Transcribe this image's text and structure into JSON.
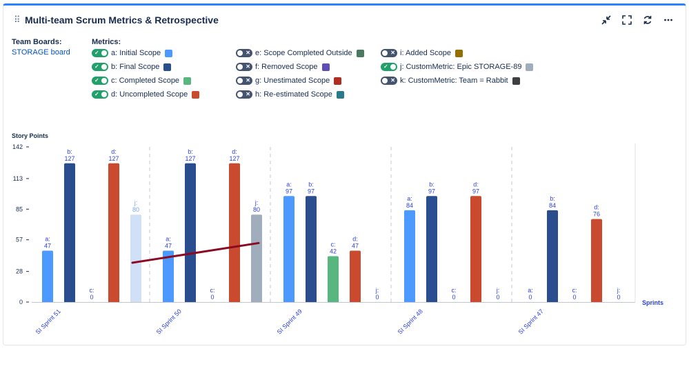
{
  "header": {
    "title": "Multi-team Scrum Metrics & Retrospective",
    "icons": [
      "collapse-icon",
      "fullscreen-icon",
      "refresh-icon",
      "more-icon"
    ]
  },
  "team_boards": {
    "label": "Team Boards:",
    "link": "STORAGE board"
  },
  "metrics": {
    "label": "Metrics:",
    "items": [
      {
        "text": "a: Initial Scope",
        "on": true,
        "color": "#4c9aff"
      },
      {
        "text": "b: Final Scope",
        "on": true,
        "color": "#2a4d8f"
      },
      {
        "text": "c: Completed Scope",
        "on": true,
        "color": "#57b77f"
      },
      {
        "text": "d: Uncompleted Scope",
        "on": true,
        "color": "#c94a2e"
      },
      {
        "text": "e: Scope Completed Outside",
        "on": false,
        "color": "#4a7a62"
      },
      {
        "text": "f: Removed Scope",
        "on": false,
        "color": "#5e4db2"
      },
      {
        "text": "g: Unestimated Scope",
        "on": false,
        "color": "#ae2e24"
      },
      {
        "text": "h: Re-estimated Scope",
        "on": false,
        "color": "#2a7a8c"
      },
      {
        "text": "i: Added Scope",
        "on": false,
        "color": "#946f00"
      },
      {
        "text": "j: CustomMetric: Epic STORAGE-89",
        "on": true,
        "color": "#9fadbc"
      },
      {
        "text": "k: CustomMetric: Team = Rabbit",
        "on": false,
        "color": "#3d3f40"
      }
    ]
  },
  "chart_data": {
    "type": "bar",
    "ylabel": "Story Points",
    "xlabel": "Sprints",
    "ylim": [
      0,
      142
    ],
    "yticks": [
      0,
      28,
      57,
      85,
      113,
      142
    ],
    "categories": [
      "SI Sprint 51",
      "SI Sprint 50",
      "SI Sprint 49",
      "SI Sprint 48",
      "SI Sprint 47"
    ],
    "series": [
      {
        "name": "a",
        "color": "#4c9aff",
        "values": [
          47,
          47,
          97,
          84,
          0
        ]
      },
      {
        "name": "b",
        "color": "#2a4d8f",
        "values": [
          127,
          127,
          97,
          97,
          84
        ]
      },
      {
        "name": "c",
        "color": "#57b77f",
        "values": [
          0,
          0,
          42,
          0,
          0
        ]
      },
      {
        "name": "d",
        "color": "#c94a2e",
        "values": [
          127,
          127,
          47,
          97,
          76
        ]
      },
      {
        "name": "j",
        "color": "#9fadbc",
        "values": [
          80,
          80,
          0,
          0,
          0
        ]
      }
    ],
    "visible": [
      [
        "a",
        "b",
        "c",
        "d",
        "j"
      ],
      [
        "a",
        "b",
        "c",
        "d",
        "j"
      ],
      [
        "a",
        "b",
        "c",
        "d",
        "j"
      ],
      [
        "a",
        "b",
        "c",
        "d",
        "j"
      ],
      [
        "a",
        "b",
        "c",
        "d",
        "j"
      ]
    ],
    "highlight_color": "#cfe0f7",
    "trend_line": {
      "color": "#8b0a22",
      "from_y": 36,
      "to_y": 54
    }
  }
}
